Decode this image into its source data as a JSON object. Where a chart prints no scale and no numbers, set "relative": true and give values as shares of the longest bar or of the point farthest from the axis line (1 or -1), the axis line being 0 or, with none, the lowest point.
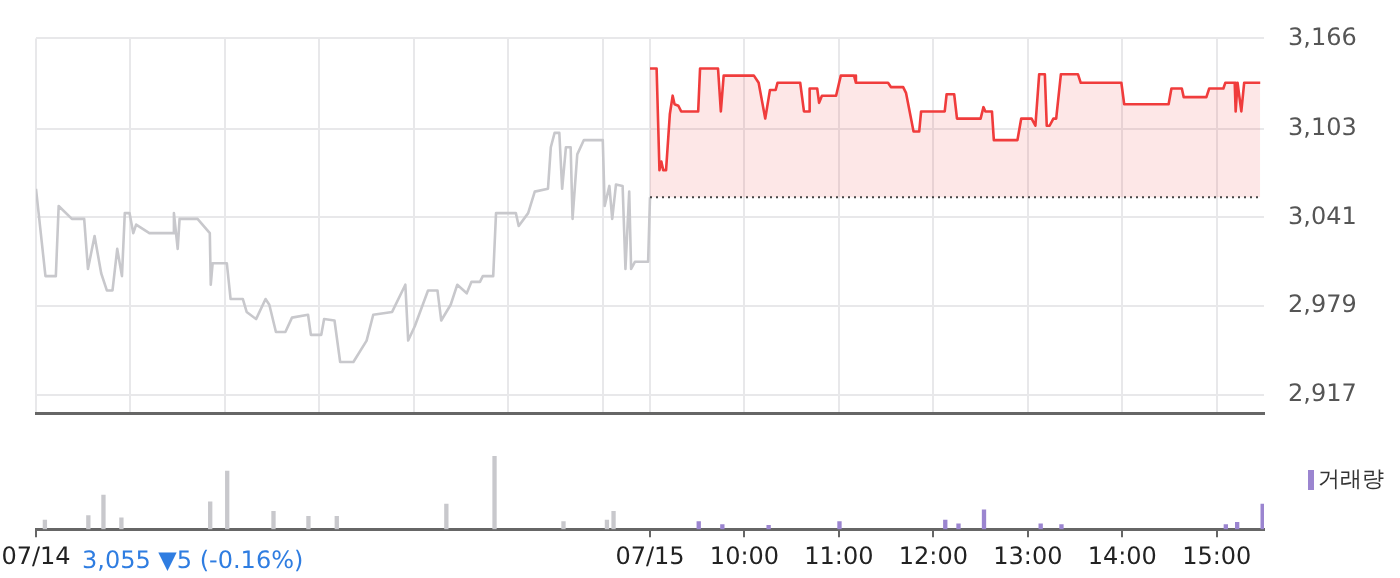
{
  "chart_data": [
    {
      "type": "line",
      "xlim": [
        2.5,
        15.5
      ],
      "ylim": [
        2904,
        3166
      ],
      "xticks": [
        2.5,
        3.5,
        4.5,
        5.5,
        6.5,
        7.5,
        8.5,
        9,
        10,
        11,
        12,
        13,
        14,
        15
      ],
      "yticks": [
        {
          "value": 2917,
          "label": "2,917"
        },
        {
          "value": 2979,
          "label": "2,979"
        },
        {
          "value": 3041,
          "label": "3,041"
        },
        {
          "value": 3103,
          "label": "3,103"
        },
        {
          "value": 3166,
          "label": "3,166"
        }
      ],
      "grid": true,
      "tick_labels": "y",
      "ref_lines": [
        {
          "axis": "y",
          "value": 3055,
          "color": "#444444",
          "line_style": "dotted"
        }
      ],
      "series": [
        {
          "type": "line",
          "color": "#c8c8cc",
          "x": [
            2.5,
            2.6,
            2.71,
            2.74,
            2.88,
            3.01,
            3.05,
            3.12,
            3.19,
            3.25,
            3.31,
            3.36,
            3.41,
            3.44,
            3.49,
            3.53,
            3.56,
            3.7,
            3.94,
            3.96,
            4.0,
            4.02,
            4.21,
            4.34,
            4.35,
            4.37,
            4.52,
            4.56,
            4.69,
            4.73,
            4.83,
            4.93,
            4.97,
            5.04,
            5.14,
            5.21,
            5.38,
            5.41,
            5.52,
            5.55,
            5.66,
            5.72,
            5.86,
            6.0,
            6.07,
            6.27,
            6.41,
            6.44,
            6.51,
            6.65,
            6.75,
            6.79,
            6.89,
            6.96,
            7.06,
            7.11,
            7.2,
            7.23,
            7.34,
            7.37,
            7.58,
            7.61,
            7.71,
            7.78,
            7.92,
            7.95,
            7.99,
            8.04,
            8.07,
            8.11,
            8.16,
            8.18,
            8.23,
            8.3,
            8.5,
            8.52,
            8.57,
            8.6,
            8.64,
            8.71,
            8.74,
            8.78,
            8.8,
            8.84,
            8.98,
            9.0
          ],
          "values": [
            3061,
            3000,
            3000,
            3049,
            3040,
            3040,
            3005,
            3028,
            3002,
            2990,
            2990,
            3019,
            3000,
            3044,
            3044,
            3030,
            3036,
            3030,
            3030,
            3044,
            3019,
            3040,
            3040,
            3030,
            2994,
            3009,
            3009,
            2984,
            2984,
            2975,
            2970,
            2984,
            2980,
            2961,
            2961,
            2971,
            2973,
            2959,
            2959,
            2970,
            2969,
            2940,
            2940,
            2955,
            2973,
            2975,
            2994,
            2955,
            2965,
            2990,
            2990,
            2969,
            2980,
            2994,
            2988,
            2996,
            2996,
            3000,
            3000,
            3044,
            3044,
            3035,
            3044,
            3059,
            3061,
            3090,
            3100,
            3100,
            3061,
            3090,
            3090,
            3040,
            3085,
            3095,
            3095,
            3049,
            3063,
            3040,
            3064,
            3063,
            3005,
            3059,
            3005,
            3010,
            3010,
            3055
          ]
        },
        {
          "type": "area",
          "color": "#f03c3c",
          "x": [
            9.0,
            9.07,
            9.1,
            9.12,
            9.14,
            9.17,
            9.21,
            9.24,
            9.26,
            9.3,
            9.33,
            9.51,
            9.53,
            9.72,
            9.75,
            9.78,
            10.1,
            10.15,
            10.22,
            10.27,
            10.33,
            10.35,
            10.59,
            10.63,
            10.68,
            10.69,
            10.77,
            10.79,
            10.82,
            10.97,
            11.02,
            11.16,
            11.18,
            11.52,
            11.55,
            11.68,
            11.71,
            11.79,
            11.85,
            11.87,
            12.12,
            12.14,
            12.22,
            12.25,
            12.5,
            12.53,
            12.55,
            12.62,
            12.64,
            12.89,
            12.93,
            13.04,
            13.08,
            13.12,
            13.18,
            13.2,
            13.23,
            13.27,
            13.3,
            13.35,
            13.53,
            13.56,
            13.99,
            14.02,
            14.49,
            14.52,
            14.63,
            14.65,
            14.89,
            14.92,
            15.07,
            15.09,
            15.19,
            15.2,
            15.22,
            15.26,
            15.29,
            15.46
          ],
          "values": [
            3145,
            3145,
            3074,
            3080,
            3074,
            3074,
            3113,
            3126,
            3120,
            3119,
            3115,
            3115,
            3145,
            3145,
            3115,
            3140,
            3140,
            3135,
            3110,
            3130,
            3130,
            3135,
            3135,
            3115,
            3115,
            3131,
            3131,
            3121,
            3126,
            3126,
            3140,
            3140,
            3135,
            3135,
            3132,
            3132,
            3128,
            3101,
            3101,
            3115,
            3115,
            3127,
            3127,
            3110,
            3110,
            3118,
            3115,
            3115,
            3095,
            3095,
            3110,
            3110,
            3105,
            3141,
            3141,
            3105,
            3105,
            3110,
            3110,
            3141,
            3141,
            3135,
            3135,
            3120,
            3120,
            3131,
            3131,
            3125,
            3125,
            3131,
            3131,
            3135,
            3135,
            3115,
            3135,
            3115,
            3135,
            3135
          ]
        }
      ]
    },
    {
      "type": "bar",
      "relative": true,
      "xlim": [
        2.5,
        15.5
      ],
      "xticks": [
        {
          "value": 2.5,
          "label": "07/14"
        },
        {
          "value": 9,
          "label": "07/15"
        },
        {
          "value": 10,
          "label": "10:00"
        },
        {
          "value": 11,
          "label": "11:00"
        },
        {
          "value": 12,
          "label": "12:00"
        },
        {
          "value": 13,
          "label": "13:00"
        },
        {
          "value": 14,
          "label": "14:00"
        },
        {
          "value": 15,
          "label": "15:00"
        }
      ],
      "tick_labels": "x",
      "legend": "top right",
      "annotations": [
        "3,055 ▼5 (-0.16%)"
      ],
      "series": [
        {
          "color": "#c8c8cc",
          "x": [
            2.61,
            3.07,
            3.23,
            3.42,
            4.36,
            4.54,
            5.03,
            5.4,
            5.7,
            6.86,
            7.37,
            8.1,
            8.56,
            8.63
          ],
          "values": [
            0.12,
            0.18,
            0.46,
            0.15,
            0.37,
            0.79,
            0.24,
            0.17,
            0.17,
            0.34,
            1,
            0.1,
            0.12,
            0.24
          ]
        },
        {
          "name": "거래량",
          "color": "#9b85d0",
          "x": [
            9.5,
            9.75,
            10.24,
            10.99,
            12.11,
            12.25,
            12.52,
            13.12,
            13.34,
            15.08,
            15.2,
            15.47
          ],
          "values": [
            0.1,
            0.06,
            0.05,
            0.1,
            0.12,
            0.07,
            0.26,
            0.07,
            0.06,
            0.06,
            0.09,
            0.34
          ]
        }
      ]
    }
  ]
}
